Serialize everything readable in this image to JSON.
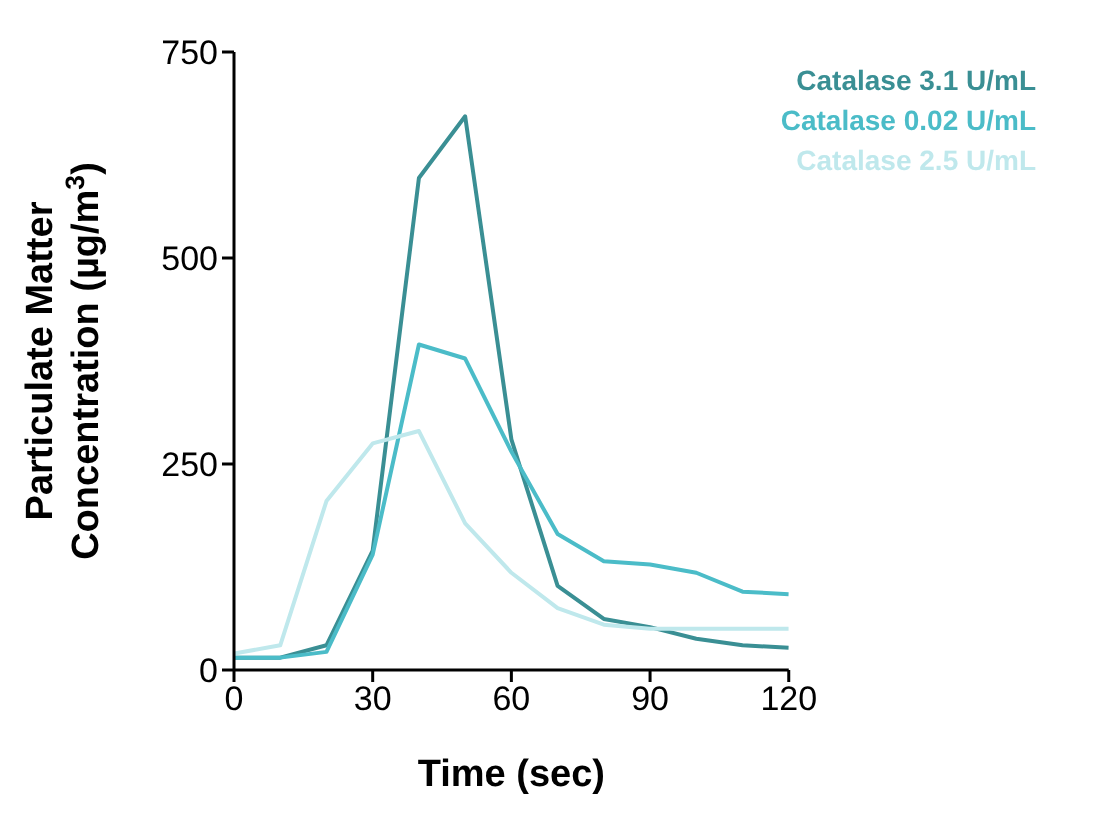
{
  "chart_data": {
    "type": "line",
    "xlabel": "Time (sec)",
    "ylabel": "Particulate Matter Concentration (µg/m$^{3}$)",
    "x": [
      0,
      10,
      20,
      30,
      40,
      50,
      60,
      70,
      80,
      90,
      100,
      110,
      120
    ],
    "series": [
      {
        "name": "Catalase 3.1 U/mL",
        "color": "#3a8f94",
        "values": [
          15,
          15,
          30,
          145,
          597,
          672,
          280,
          102,
          62,
          52,
          38,
          30,
          27
        ]
      },
      {
        "name": "Catalase 0.02 U/mL",
        "color": "#4bbcc8",
        "values": [
          15,
          15,
          22,
          140,
          395,
          378,
          265,
          165,
          132,
          128,
          118,
          95,
          92
        ]
      },
      {
        "name": "Catalase 2.5 U/mL",
        "color": "#bfe8ec",
        "values": [
          20,
          30,
          205,
          275,
          290,
          178,
          118,
          75,
          55,
          50,
          50,
          50,
          50
        ]
      }
    ],
    "xlim": [
      0,
      120
    ],
    "xticks": [
      0,
      30,
      60,
      90,
      120
    ],
    "ylim": [
      0,
      750
    ],
    "yticks": [
      0,
      250,
      500,
      750
    ],
    "grid": false,
    "legend": "top right",
    "marker": "none",
    "line_style": "solid"
  }
}
